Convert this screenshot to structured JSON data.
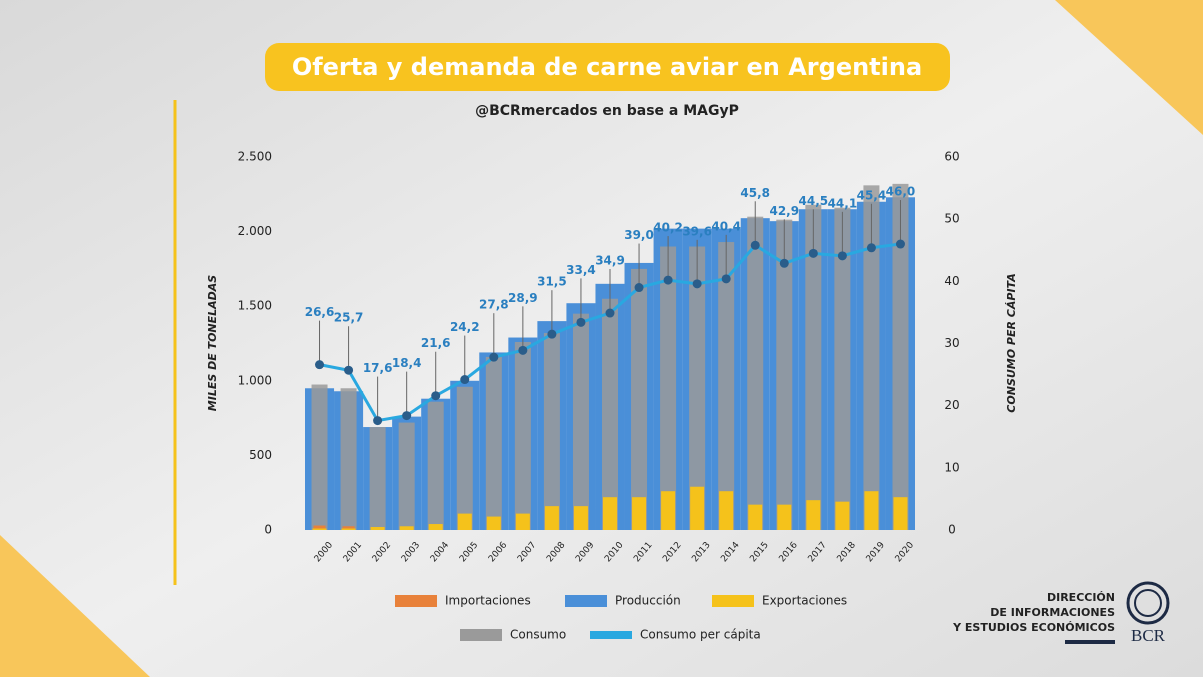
{
  "chart_data": {
    "type": "bar",
    "title": "Oferta y demanda de carne aviar en Argentina",
    "subtitle": "@BCRmercados en base a MAGyP",
    "y_label": "MILES DE TONELADAS",
    "y2_label": "CONSUMO PER CÁPITA",
    "categories": [
      "2000",
      "2001",
      "2002",
      "2003",
      "2004",
      "2005",
      "2006",
      "2007",
      "2008",
      "2009",
      "2010",
      "2011",
      "2012",
      "2013",
      "2014",
      "2015",
      "2016",
      "2017",
      "2018",
      "2019",
      "2020"
    ],
    "ylim": [
      0,
      2500
    ],
    "yticks": [
      0,
      500,
      {
        "value": 1000,
        "label": "1.000"
      },
      {
        "value": 1500,
        "label": "1.500"
      },
      {
        "value": 2000,
        "label": "2.000"
      },
      {
        "value": 2500,
        "label": "2.500"
      }
    ],
    "y2lim": [
      0,
      60
    ],
    "y2ticks": [
      0,
      10,
      20,
      30,
      40,
      50,
      60
    ],
    "series": [
      {
        "name": "Producción",
        "kind": "bar",
        "color": "#4a8fd8",
        "values": [
          950,
          930,
          690,
          760,
          880,
          1000,
          1190,
          1290,
          1400,
          1520,
          1650,
          1790,
          2020,
          2020,
          2020,
          2090,
          2070,
          2150,
          2150,
          2200,
          2230
        ]
      },
      {
        "name": "Consumo",
        "kind": "bar",
        "color": "#9a9a9a",
        "values": [
          975,
          950,
          690,
          720,
          860,
          960,
          1160,
          1260,
          1320,
          1450,
          1550,
          1750,
          1900,
          1900,
          1930,
          2100,
          2080,
          2180,
          2160,
          2310,
          2320
        ]
      },
      {
        "name": "Importaciones",
        "kind": "bar",
        "color": "#e8813a",
        "values": [
          30,
          25,
          5,
          5,
          5,
          5,
          5,
          5,
          5,
          5,
          5,
          5,
          5,
          5,
          5,
          5,
          5,
          5,
          5,
          5,
          5
        ]
      },
      {
        "name": "Exportaciones",
        "kind": "bar",
        "color": "#f5c21b",
        "values": [
          10,
          10,
          20,
          25,
          40,
          110,
          90,
          110,
          160,
          160,
          220,
          220,
          260,
          290,
          260,
          170,
          170,
          200,
          190,
          260,
          220
        ]
      },
      {
        "name": "Consumo per cápita",
        "kind": "line",
        "axis": "y2",
        "color": "#29a8e0",
        "point_color": "#2a5d8a",
        "values": [
          26.6,
          25.7,
          17.6,
          18.4,
          21.6,
          24.2,
          27.8,
          28.9,
          31.5,
          33.4,
          34.9,
          39.0,
          40.2,
          39.6,
          40.4,
          45.8,
          42.9,
          44.5,
          44.1,
          45.4,
          46.0
        ],
        "value_labels": [
          "26,6",
          "25,7",
          "17,6",
          "18,4",
          "21,6",
          "24,2",
          "27,8",
          "28,9",
          "31,5",
          "33,4",
          "34,9",
          "39,0",
          "40,2",
          "39,6",
          "40,4",
          "45,8",
          "42,9",
          "44,5",
          "44,1",
          "45,4",
          "46,0"
        ]
      }
    ],
    "legend_order": [
      2,
      0,
      3,
      1,
      4
    ]
  },
  "footer": {
    "lines": [
      "DIRECCIÓN",
      "DE INFORMACIONES",
      "Y ESTUDIOS ECONÓMICOS"
    ],
    "logo": "BCR"
  }
}
